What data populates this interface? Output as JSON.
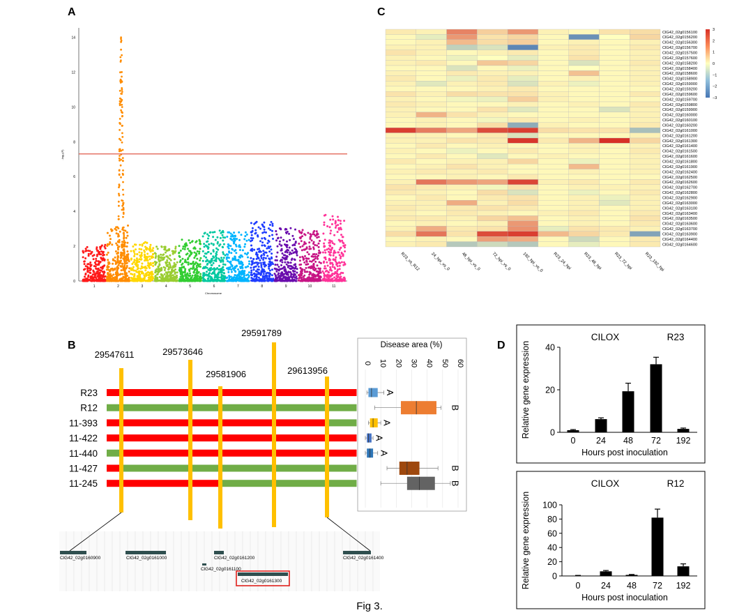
{
  "figure_caption": "Fig 3.",
  "panel_labels": {
    "a": "A",
    "b": "B",
    "c": "C",
    "d": "D"
  },
  "manhattan": {
    "y_axis_label": "-log₁₀(P)",
    "x_axis_label": "Chromosome",
    "y_ticks": [
      "0",
      "2",
      "4",
      "6",
      "8",
      "10",
      "12",
      "14"
    ],
    "chromosomes": [
      "1",
      "2",
      "3",
      "4",
      "5",
      "6",
      "7",
      "8",
      "9",
      "10",
      "11"
    ],
    "colors": [
      "#ff1a1a",
      "#ff8c00",
      "#ffd700",
      "#9acd32",
      "#32cd32",
      "#00c8a0",
      "#00b4ff",
      "#1e3cff",
      "#6a0dad",
      "#c71585",
      "#ff3399"
    ],
    "threshold": 7.3,
    "peak_value": 14.3,
    "threshold_color": "#e05a4a"
  },
  "heatmap": {
    "columns": [
      "R23_vs_R12",
      "24_hpi_vs_0",
      "48_hpi_vs_0",
      "72_hpi_vs_0",
      "192_hpi_vs_0",
      "R23_24_hpi",
      "R23_48_hpi",
      "R23_72_hpi",
      "R23_192_hpi"
    ],
    "rows": [
      "ClG42_02g0156100",
      "ClG42_02g0156200",
      "ClG42_02g0156300",
      "ClG42_02g0156700",
      "ClG42_02g0157500",
      "ClG42_02g0157600",
      "ClG42_02g0158200",
      "ClG42_02g0158400",
      "ClG42_02g0158600",
      "ClG42_02g0158900",
      "ClG42_02g0159000",
      "ClG42_02g0159200",
      "ClG42_02g0159600",
      "ClG42_02g0159700",
      "ClG42_02g0159800",
      "ClG42_02g0159900",
      "ClG42_02g0160000",
      "ClG42_02g0160100",
      "ClG42_02g0160200",
      "ClG42_02g0161000",
      "ClG42_02g0161200",
      "ClG42_02g0161300",
      "ClG42_02g0161400",
      "ClG42_02g0161500",
      "ClG42_02g0161600",
      "ClG42_02g0161800",
      "ClG42_02g0161900",
      "ClG42_02g0162400",
      "ClG42_02g0162500",
      "ClG42_02g0162600",
      "ClG42_02g0162700",
      "ClG42_02g0162800",
      "ClG42_02g0162900",
      "ClG42_02g0163000",
      "ClG42_02g0163100",
      "ClG42_02g0163400",
      "ClG42_02g0163500",
      "ClG42_02g0163600",
      "ClG42_02g0163700",
      "ClG42_02g0163900",
      "ClG42_02g0164400",
      "ClG42_02g0164600"
    ],
    "values": [
      [
        0.3,
        0.2,
        1.8,
        0.7,
        1.5,
        0.2,
        0.1,
        0.4,
        0.5
      ],
      [
        0.1,
        -0.4,
        1.5,
        0.4,
        0.6,
        0.1,
        -2.4,
        0.0,
        0.6
      ],
      [
        0.1,
        0.2,
        1.0,
        0.5,
        0.7,
        0.1,
        0.2,
        0.1,
        0.2
      ],
      [
        0.2,
        0.2,
        -1.0,
        -0.6,
        -2.6,
        0.2,
        0.3,
        0.1,
        0.3
      ],
      [
        0.4,
        0.2,
        0.1,
        0.2,
        0.3,
        0.1,
        0.3,
        0.1,
        0.2
      ],
      [
        0.2,
        0.1,
        -0.3,
        0.0,
        -0.4,
        0.1,
        0.4,
        0.1,
        0.2
      ],
      [
        0.2,
        0.3,
        0.1,
        0.8,
        0.6,
        0.1,
        -0.6,
        0.1,
        0.3
      ],
      [
        0.1,
        0.1,
        -0.6,
        0.1,
        -0.3,
        0.1,
        0.0,
        0.1,
        0.2
      ],
      [
        0.2,
        0.1,
        0.3,
        0.2,
        0.2,
        0.1,
        0.9,
        0.1,
        0.2
      ],
      [
        0.3,
        0.1,
        -0.3,
        0.3,
        -0.4,
        0.1,
        0.2,
        0.1,
        0.2
      ],
      [
        0.2,
        -0.5,
        0.2,
        0.3,
        -0.6,
        0.2,
        -0.3,
        0.1,
        0.2
      ],
      [
        0.1,
        0.1,
        0.1,
        0.2,
        0.3,
        0.1,
        0.1,
        0.1,
        0.1
      ],
      [
        0.4,
        0.2,
        0.5,
        0.4,
        0.4,
        0.2,
        0.1,
        0.1,
        0.3
      ],
      [
        0.2,
        0.1,
        -0.2,
        -0.3,
        0.7,
        0.2,
        0.1,
        0.1,
        0.1
      ],
      [
        0.3,
        0.2,
        0.1,
        0.1,
        0.2,
        0.1,
        0.2,
        0.1,
        0.3
      ],
      [
        0.2,
        0.1,
        0.1,
        0.4,
        -0.5,
        0.1,
        0.1,
        -0.6,
        0.2
      ],
      [
        0.2,
        1.1,
        0.4,
        0.2,
        0.1,
        0.1,
        0.1,
        0.1,
        0.2
      ],
      [
        0.1,
        0.2,
        0.1,
        -0.2,
        0.3,
        0.1,
        0.2,
        0.1,
        0.2
      ],
      [
        0.1,
        0.2,
        0.1,
        0.5,
        -1.8,
        0.2,
        0.1,
        0.1,
        0.3
      ],
      [
        2.8,
        1.9,
        1.3,
        2.6,
        2.8,
        0.5,
        0.4,
        0.4,
        -1.4
      ],
      [
        0.2,
        0.2,
        0.1,
        0.3,
        -0.6,
        0.1,
        0.1,
        0.1,
        0.2
      ],
      [
        0.2,
        0.2,
        0.4,
        0.3,
        2.9,
        0.3,
        1.1,
        3.0,
        0.6
      ],
      [
        0.1,
        0.3,
        0.1,
        0.2,
        0.1,
        0.1,
        0.2,
        0.1,
        0.2
      ],
      [
        0.2,
        0.1,
        -0.3,
        0.1,
        0.3,
        0.1,
        0.2,
        0.1,
        0.3
      ],
      [
        0.1,
        0.3,
        0.1,
        -0.5,
        0.1,
        0.2,
        0.1,
        0.1,
        0.2
      ],
      [
        0.3,
        0.1,
        0.2,
        0.2,
        0.6,
        0.1,
        -0.3,
        0.1,
        0.2
      ],
      [
        0.1,
        0.2,
        0.4,
        0.2,
        0.1,
        0.1,
        1.0,
        0.1,
        0.2
      ],
      [
        0.2,
        0.3,
        0.2,
        0.3,
        0.1,
        0.1,
        0.2,
        0.1,
        0.2
      ],
      [
        0.1,
        0.1,
        0.2,
        0.1,
        0.3,
        0.1,
        0.1,
        0.1,
        0.1
      ],
      [
        0.2,
        2.0,
        1.5,
        1.3,
        2.7,
        0.2,
        0.3,
        0.1,
        0.3
      ],
      [
        0.4,
        0.3,
        0.2,
        -0.2,
        0.4,
        0.1,
        0.2,
        0.2,
        0.2
      ],
      [
        0.3,
        0.2,
        0.1,
        0.5,
        -0.6,
        0.1,
        -0.3,
        0.1,
        0.3
      ],
      [
        0.1,
        0.3,
        0.1,
        0.3,
        0.4,
        0.1,
        0.2,
        -0.3,
        0.2
      ],
      [
        0.2,
        0.2,
        1.2,
        0.2,
        0.5,
        0.1,
        0.2,
        -0.5,
        0.2
      ],
      [
        0.3,
        0.2,
        0.3,
        0.4,
        0.3,
        0.1,
        0.2,
        0.1,
        0.2
      ],
      [
        0.2,
        0.1,
        0.3,
        0.2,
        0.1,
        0.2,
        0.3,
        0.1,
        0.3
      ],
      [
        0.3,
        0.3,
        0.2,
        0.6,
        0.9,
        0.1,
        0.2,
        0.1,
        0.4
      ],
      [
        0.1,
        0.2,
        0.1,
        0.2,
        1.5,
        0.1,
        0.2,
        0.1,
        0.3
      ],
      [
        0.2,
        1.2,
        0.3,
        0.4,
        1.6,
        -0.4,
        0.4,
        0.3,
        0.2
      ],
      [
        0.5,
        2.0,
        0.4,
        2.6,
        2.8,
        1.0,
        0.6,
        0.3,
        -2.0
      ],
      [
        0.1,
        0.2,
        0.1,
        1.4,
        1.2,
        0.1,
        -0.8,
        0.1,
        0.3
      ],
      [
        0.2,
        0.3,
        -1.2,
        -0.8,
        -1.2,
        0.1,
        -0.4,
        0.1,
        0.3
      ]
    ],
    "colorbar_ticks": [
      "3",
      "2",
      "1",
      "0",
      "−1",
      "−2",
      "−3"
    ],
    "color_low": "#4575b4",
    "color_mid": "#ffffbf",
    "color_high": "#d73027"
  },
  "haplotype": {
    "markers": [
      "29547611",
      "29573646",
      "29581906",
      "29591789",
      "29613956"
    ],
    "lines": [
      {
        "name": "R23",
        "segments": [
          "red",
          "red",
          "red",
          "red",
          "red",
          "red"
        ]
      },
      {
        "name": "R12",
        "segments": [
          "green",
          "green",
          "green",
          "green",
          "green",
          "green"
        ]
      },
      {
        "name": "11-393",
        "segments": [
          "red",
          "red",
          "red",
          "red",
          "red",
          "green"
        ]
      },
      {
        "name": "11-422",
        "segments": [
          "red",
          "red",
          "red",
          "red",
          "red",
          "red"
        ]
      },
      {
        "name": "11-440",
        "segments": [
          "green",
          "red",
          "red",
          "red",
          "red",
          "red"
        ]
      },
      {
        "name": "11-427",
        "segments": [
          "red",
          "green",
          "green",
          "green",
          "green",
          "green"
        ]
      },
      {
        "name": "11-245",
        "segments": [
          "red",
          "red",
          "red",
          "green",
          "green",
          "green"
        ]
      }
    ],
    "red_color": "#ff0000",
    "green_color": "#70ad47",
    "marker_color": "#ffc000"
  },
  "boxplot": {
    "title": "Disease area (%)",
    "ticks": [
      "0",
      "10",
      "20",
      "30",
      "40",
      "50",
      "60"
    ],
    "boxes": [
      {
        "q1": 2,
        "median": 4,
        "q3": 8,
        "min": 1,
        "max": 12,
        "color": "#5b9bd5",
        "letter": "A"
      },
      {
        "q1": 23,
        "median": 33,
        "q3": 46,
        "min": 6,
        "max": 49,
        "color": "#ed7d31",
        "letter": "B"
      },
      {
        "q1": 3,
        "median": 5,
        "q3": 8,
        "min": 2,
        "max": 10,
        "color": "#ffc000",
        "letter": "A"
      },
      {
        "q1": 1,
        "median": 2,
        "q3": 4,
        "min": 0,
        "max": 5,
        "color": "#4472c4",
        "letter": "A"
      },
      {
        "q1": 1,
        "median": 3,
        "q3": 5,
        "min": 0,
        "max": 8,
        "color": "#2e75b6",
        "letter": "A"
      },
      {
        "q1": 22,
        "median": 27,
        "q3": 35,
        "min": 14,
        "max": 47,
        "color": "#9e480e",
        "letter": "B"
      },
      {
        "q1": 27,
        "median": 35,
        "q3": 45,
        "min": 10,
        "max": 55,
        "color": "#636363",
        "letter": "B"
      }
    ]
  },
  "gene_track": {
    "genes": [
      "ClG42_02g0160900",
      "ClG42_02g0161000",
      "ClG42_02g0161200",
      "ClG42_02g0161100",
      "ClG42_02g0161300",
      "ClG42_02g0161400"
    ],
    "highlight_color": "#e0201c",
    "gene_color": "#2f4f4f"
  },
  "chart_data": [
    {
      "type": "bar",
      "title": "CILOX",
      "subtitle": "R23",
      "categories": [
        "0",
        "24",
        "48",
        "72",
        "192"
      ],
      "values": [
        1,
        6.2,
        19.3,
        32,
        1.6
      ],
      "errors": [
        0.3,
        0.6,
        3.8,
        3.3,
        0.4
      ],
      "xlabel": "Hours post inoculation",
      "ylabel": "Relative gene expression",
      "ylim": [
        0,
        40
      ],
      "yticks": [
        "0",
        "20",
        "40"
      ]
    },
    {
      "type": "bar",
      "title": "CILOX",
      "subtitle": "R12",
      "categories": [
        "0",
        "24",
        "48",
        "72",
        "192"
      ],
      "values": [
        0.5,
        6.5,
        1.5,
        82,
        13.5
      ],
      "errors": [
        0.3,
        1.2,
        0.6,
        12,
        3.5
      ],
      "xlabel": "Hours post inoculation",
      "ylabel": "Relative gene expression",
      "ylim": [
        0,
        100
      ],
      "yticks": [
        "0",
        "20",
        "40",
        "60",
        "80",
        "100"
      ]
    }
  ]
}
